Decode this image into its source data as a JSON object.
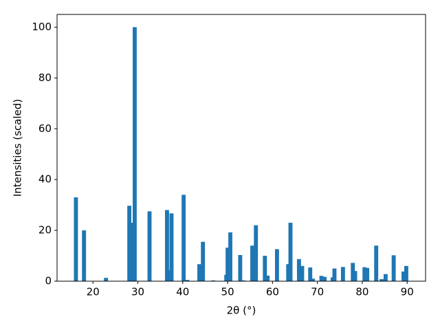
{
  "chart_data": {
    "type": "bar",
    "xlabel": "2θ (°)",
    "ylabel": "Intensities (scaled)",
    "color": "#1f77b4",
    "xlim": [
      12,
      94.1
    ],
    "ylim": [
      0,
      105
    ],
    "xticks": [
      20,
      30,
      40,
      50,
      60,
      70,
      80,
      90
    ],
    "yticks": [
      0,
      20,
      40,
      60,
      80,
      100
    ],
    "x": [
      16.2,
      18.0,
      22.9,
      28.1,
      28.9,
      29.3,
      32.6,
      36.5,
      37.0,
      37.5,
      40.2,
      41.0,
      43.7,
      44.5,
      46.8,
      49.7,
      50.0,
      50.6,
      52.8,
      53.5,
      55.5,
      56.3,
      58.3,
      58.9,
      61.0,
      63.5,
      64.0,
      65.9,
      66.6,
      68.4,
      69.0,
      70.9,
      71.6,
      73.4,
      73.8,
      75.7,
      77.9,
      78.4,
      80.5,
      81.1,
      83.1,
      84.3,
      85.2,
      87.0,
      89.2,
      89.8
    ],
    "values": [
      33,
      20,
      1.3,
      29.7,
      23,
      100,
      27.5,
      28,
      4.3,
      26.7,
      34,
      0.5,
      6.7,
      15.5,
      0.3,
      2.5,
      13.2,
      19.2,
      10.3,
      0.3,
      14,
      22,
      10,
      2.2,
      12.6,
      6.7,
      23,
      8.7,
      6,
      5.4,
      1,
      2.1,
      1.7,
      1.5,
      5,
      5.6,
      7.2,
      4,
      5.5,
      5.2,
      14,
      0.8,
      2.8,
      10.2,
      3.8,
      6
    ]
  }
}
